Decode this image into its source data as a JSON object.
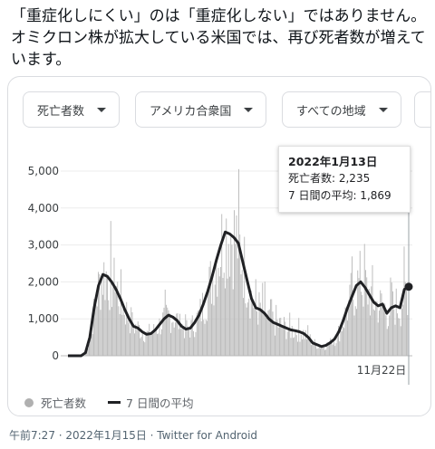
{
  "tweet": {
    "text": "「重症化しにくい」のは「重症化しない」ではありません。オミクロン株が拡大している米国では、再び死者数が増えています。",
    "meta": "午前7:27 · 2022年1月15日 · Twitter for Android"
  },
  "filters": [
    {
      "label": "死亡者数"
    },
    {
      "label": "アメリカ合衆国"
    },
    {
      "label": "すべての地域"
    }
  ],
  "tooltip": {
    "date": "2022年1月13日",
    "daily": "死亡者数: 2,235",
    "avg": "7 日間の平均: 1,869"
  },
  "legend": {
    "daily": "死亡者数",
    "avg": "7 日間の平均"
  },
  "chart_data": {
    "type": "bar",
    "x_tick_labels": [
      "11月22日"
    ],
    "y_ticks": [
      0,
      1000,
      2000,
      3000,
      4000,
      5000
    ],
    "y_tick_labels": [
      "0",
      "1,000",
      "2,000",
      "3,000",
      "4,000",
      "5,000"
    ],
    "ylim": [
      0,
      5600
    ],
    "grid": true,
    "legend_position": "bottom-left",
    "series": [
      {
        "name": "死亡者数",
        "type": "bar",
        "color": "#b0b0b0"
      },
      {
        "name": "7 日間の平均",
        "type": "line",
        "color": "#202124"
      }
    ],
    "avg_points": [
      [
        0,
        0
      ],
      [
        3,
        0
      ],
      [
        4,
        80
      ],
      [
        5,
        500
      ],
      [
        6,
        1300
      ],
      [
        7,
        1900
      ],
      [
        8,
        2200
      ],
      [
        9,
        2150
      ],
      [
        10,
        2000
      ],
      [
        11,
        1800
      ],
      [
        12,
        1550
      ],
      [
        13,
        1250
      ],
      [
        14,
        1000
      ],
      [
        15,
        800
      ],
      [
        16,
        750
      ],
      [
        17,
        650
      ],
      [
        18,
        580
      ],
      [
        19,
        600
      ],
      [
        20,
        700
      ],
      [
        21,
        850
      ],
      [
        22,
        1000
      ],
      [
        23,
        1100
      ],
      [
        24,
        1050
      ],
      [
        25,
        950
      ],
      [
        26,
        800
      ],
      [
        27,
        720
      ],
      [
        28,
        750
      ],
      [
        29,
        900
      ],
      [
        30,
        1100
      ],
      [
        31,
        1400
      ],
      [
        32,
        1750
      ],
      [
        33,
        2150
      ],
      [
        34,
        2600
      ],
      [
        35,
        3000
      ],
      [
        36,
        3350
      ],
      [
        37,
        3300
      ],
      [
        38,
        3200
      ],
      [
        39,
        3050
      ],
      [
        40,
        2550
      ],
      [
        41,
        2050
      ],
      [
        42,
        1550
      ],
      [
        43,
        1300
      ],
      [
        44,
        1250
      ],
      [
        45,
        1150
      ],
      [
        46,
        1000
      ],
      [
        47,
        900
      ],
      [
        48,
        850
      ],
      [
        49,
        800
      ],
      [
        50,
        750
      ],
      [
        51,
        700
      ],
      [
        52,
        680
      ],
      [
        53,
        650
      ],
      [
        54,
        600
      ],
      [
        55,
        500
      ],
      [
        56,
        350
      ],
      [
        57,
        300
      ],
      [
        58,
        250
      ],
      [
        59,
        280
      ],
      [
        60,
        350
      ],
      [
        61,
        450
      ],
      [
        62,
        650
      ],
      [
        63,
        950
      ],
      [
        64,
        1300
      ],
      [
        65,
        1600
      ],
      [
        66,
        1900
      ],
      [
        67,
        2000
      ],
      [
        68,
        1850
      ],
      [
        69,
        1650
      ],
      [
        70,
        1450
      ],
      [
        71,
        1350
      ],
      [
        72,
        1400
      ],
      [
        73,
        1150
      ],
      [
        74,
        1300
      ],
      [
        75,
        1350
      ],
      [
        76,
        1300
      ],
      [
        77,
        1800
      ],
      [
        78,
        1869
      ]
    ],
    "highlight": {
      "x": 78,
      "value": 1869
    }
  }
}
